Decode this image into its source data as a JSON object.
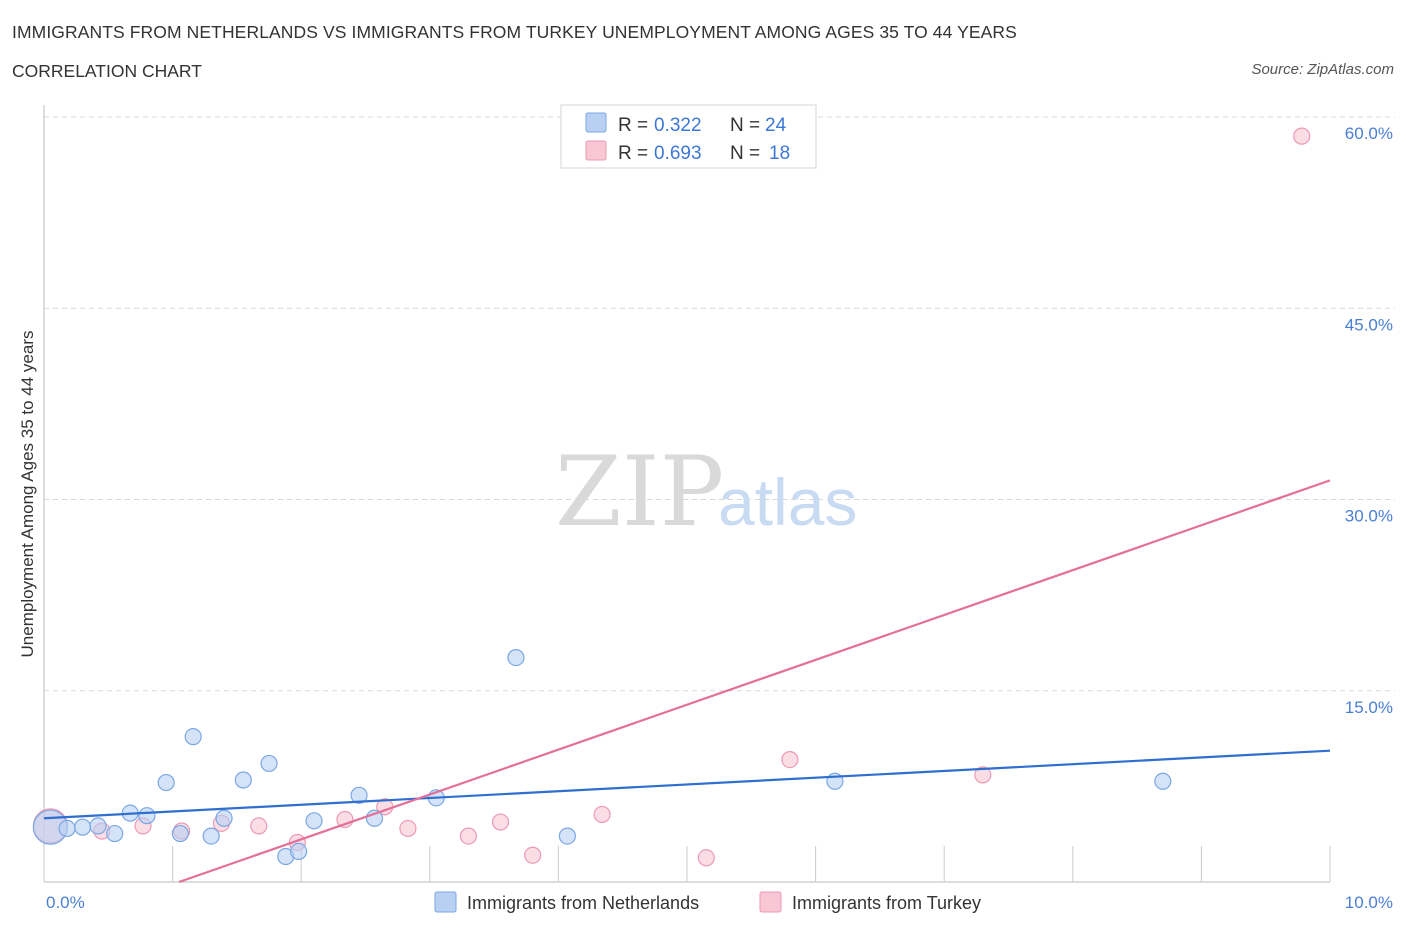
{
  "title": "IMMIGRANTS FROM NETHERLANDS VS IMMIGRANTS FROM TURKEY UNEMPLOYMENT AMONG AGES 35 TO 44 YEARS",
  "subtitle": "CORRELATION CHART",
  "source": "Source: ZipAtlas.com",
  "watermark": {
    "zip": "ZIP",
    "atlas": "atlas"
  },
  "colors": {
    "netherlands_fill": "#b8d1f3",
    "netherlands_stroke": "#7ba7e4",
    "netherlands_line": "#2f6fcf",
    "turkey_fill": "#f8c6d5",
    "turkey_stroke": "#ec9ab3",
    "turkey_line": "#e46f99",
    "axis_label": "#4a7fd4",
    "grid": "#d8d8d8"
  },
  "legend": {
    "rows": [
      {
        "r_label": "R = ",
        "r_value": "0.322",
        "n_label": "N = ",
        "n_value": "24",
        "series": "netherlands"
      },
      {
        "r_label": "R = ",
        "r_value": "0.693",
        "n_label": "N = ",
        "n_value": "18",
        "series": "turkey"
      }
    ]
  },
  "chart_data": {
    "type": "scatter",
    "title": "IMMIGRANTS FROM NETHERLANDS VS IMMIGRANTS FROM TURKEY UNEMPLOYMENT AMONG AGES 35 TO 44 YEARS",
    "xlabel": "",
    "ylabel": "Unemployment Among Ages 35 to 44 years",
    "xlim": [
      0,
      10
    ],
    "ylim": [
      0,
      60
    ],
    "x_tick_labels": [
      "0.0%",
      "10.0%"
    ],
    "y_ticks": [
      15,
      30,
      45,
      60
    ],
    "y_tick_labels": [
      "15.0%",
      "30.0%",
      "45.0%",
      "60.0%"
    ],
    "grid": true,
    "legend_position": "top-center",
    "series": [
      {
        "name": "Immigrants from Netherlands",
        "key": "netherlands",
        "points": [
          {
            "x": 0.05,
            "y": 4.3,
            "big": true
          },
          {
            "x": 0.18,
            "y": 4.2
          },
          {
            "x": 0.3,
            "y": 4.3
          },
          {
            "x": 0.42,
            "y": 4.4
          },
          {
            "x": 0.55,
            "y": 3.8
          },
          {
            "x": 0.67,
            "y": 5.4
          },
          {
            "x": 0.8,
            "y": 5.2
          },
          {
            "x": 0.95,
            "y": 7.8
          },
          {
            "x": 1.06,
            "y": 3.8
          },
          {
            "x": 1.16,
            "y": 11.4
          },
          {
            "x": 1.3,
            "y": 3.6
          },
          {
            "x": 1.4,
            "y": 5.0
          },
          {
            "x": 1.55,
            "y": 8.0
          },
          {
            "x": 1.75,
            "y": 9.3
          },
          {
            "x": 1.88,
            "y": 2.0
          },
          {
            "x": 1.98,
            "y": 2.4
          },
          {
            "x": 2.1,
            "y": 4.8
          },
          {
            "x": 2.45,
            "y": 6.8
          },
          {
            "x": 2.57,
            "y": 5.0
          },
          {
            "x": 3.05,
            "y": 6.6
          },
          {
            "x": 3.67,
            "y": 17.6
          },
          {
            "x": 4.07,
            "y": 3.6
          },
          {
            "x": 6.15,
            "y": 7.9
          },
          {
            "x": 8.7,
            "y": 7.9
          }
        ],
        "trend": {
          "x": [
            0,
            10
          ],
          "y": [
            5.0,
            10.3
          ]
        }
      },
      {
        "name": "Immigrants from Turkey",
        "key": "turkey",
        "points": [
          {
            "x": 0.05,
            "y": 4.4,
            "big": true
          },
          {
            "x": 0.45,
            "y": 4.0
          },
          {
            "x": 0.77,
            "y": 4.4
          },
          {
            "x": 1.07,
            "y": 4.0
          },
          {
            "x": 1.38,
            "y": 4.6
          },
          {
            "x": 1.67,
            "y": 4.4
          },
          {
            "x": 1.97,
            "y": 3.1
          },
          {
            "x": 2.34,
            "y": 4.9
          },
          {
            "x": 2.65,
            "y": 5.9
          },
          {
            "x": 2.83,
            "y": 4.2
          },
          {
            "x": 3.3,
            "y": 3.6
          },
          {
            "x": 3.55,
            "y": 4.7
          },
          {
            "x": 3.8,
            "y": 2.1
          },
          {
            "x": 4.34,
            "y": 5.3
          },
          {
            "x": 5.15,
            "y": 1.9
          },
          {
            "x": 5.8,
            "y": 9.6
          },
          {
            "x": 7.3,
            "y": 8.4
          },
          {
            "x": 9.78,
            "y": 58.5
          }
        ],
        "trend": {
          "x": [
            1.05,
            10
          ],
          "y": [
            0.0,
            31.5
          ]
        }
      }
    ]
  },
  "bottom_legend": [
    {
      "label": "Immigrants from Netherlands",
      "series": "netherlands"
    },
    {
      "label": "Immigrants from Turkey",
      "series": "turkey"
    }
  ]
}
